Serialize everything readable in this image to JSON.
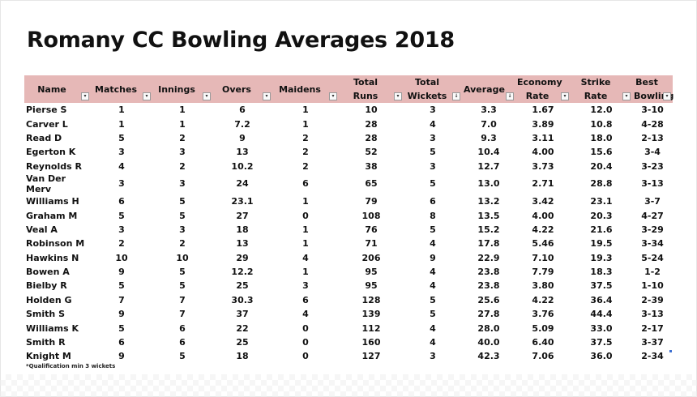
{
  "title": "Romany CC Bowling Averages 2018",
  "columns": [
    {
      "label": "Name",
      "filter": "▾"
    },
    {
      "label": "Matches",
      "filter": "▾"
    },
    {
      "label": "Innings",
      "filter": "▾"
    },
    {
      "label": "Overs",
      "filter": "▾"
    },
    {
      "label": "Maidens",
      "filter": "▾"
    },
    {
      "label": "Total Runs",
      "filter": "▾"
    },
    {
      "label": "Total Wickets",
      "filter": "↓"
    },
    {
      "label": "Average",
      "filter": "↓"
    },
    {
      "label": "Economy Rate",
      "filter": "▾"
    },
    {
      "label": "Strike Rate",
      "filter": "▾"
    },
    {
      "label": "Best Bowling",
      "filter": "▾"
    }
  ],
  "rows": [
    [
      "Pierse S",
      "1",
      "1",
      "6",
      "1",
      "10",
      "3",
      "3.3",
      "1.67",
      "12.0",
      "3-10"
    ],
    [
      "Carver L",
      "1",
      "1",
      "7.2",
      "1",
      "28",
      "4",
      "7.0",
      "3.89",
      "10.8",
      "4-28"
    ],
    [
      "Read D",
      "5",
      "2",
      "9",
      "2",
      "28",
      "3",
      "9.3",
      "3.11",
      "18.0",
      "2-13"
    ],
    [
      "Egerton K",
      "3",
      "3",
      "13",
      "2",
      "52",
      "5",
      "10.4",
      "4.00",
      "15.6",
      "3-4"
    ],
    [
      "Reynolds R",
      "4",
      "2",
      "10.2",
      "2",
      "38",
      "3",
      "12.7",
      "3.73",
      "20.4",
      "3-23"
    ],
    [
      "Van Der Merv",
      "3",
      "3",
      "24",
      "6",
      "65",
      "5",
      "13.0",
      "2.71",
      "28.8",
      "3-13"
    ],
    [
      "Williams H",
      "6",
      "5",
      "23.1",
      "1",
      "79",
      "6",
      "13.2",
      "3.42",
      "23.1",
      "3-7"
    ],
    [
      "Graham M",
      "5",
      "5",
      "27",
      "0",
      "108",
      "8",
      "13.5",
      "4.00",
      "20.3",
      "4-27"
    ],
    [
      "Veal A",
      "3",
      "3",
      "18",
      "1",
      "76",
      "5",
      "15.2",
      "4.22",
      "21.6",
      "3-29"
    ],
    [
      "Robinson M",
      "2",
      "2",
      "13",
      "1",
      "71",
      "4",
      "17.8",
      "5.46",
      "19.5",
      "3-34"
    ],
    [
      "Hawkins N",
      "10",
      "10",
      "29",
      "4",
      "206",
      "9",
      "22.9",
      "7.10",
      "19.3",
      "5-24"
    ],
    [
      "Bowen A",
      "9",
      "5",
      "12.2",
      "1",
      "95",
      "4",
      "23.8",
      "7.79",
      "18.3",
      "1-2"
    ],
    [
      "Bielby R",
      "5",
      "5",
      "25",
      "3",
      "95",
      "4",
      "23.8",
      "3.80",
      "37.5",
      "1-10"
    ],
    [
      "Holden G",
      "7",
      "7",
      "30.3",
      "6",
      "128",
      "5",
      "25.6",
      "4.22",
      "36.4",
      "2-39"
    ],
    [
      "Smith S",
      "9",
      "7",
      "37",
      "4",
      "139",
      "5",
      "27.8",
      "3.76",
      "44.4",
      "3-13"
    ],
    [
      "Williams K",
      "5",
      "6",
      "22",
      "0",
      "112",
      "4",
      "28.0",
      "5.09",
      "33.0",
      "2-17"
    ],
    [
      "Smith R",
      "6",
      "6",
      "25",
      "0",
      "160",
      "4",
      "40.0",
      "6.40",
      "37.5",
      "3-37"
    ],
    [
      "Knight M",
      "9",
      "5",
      "18",
      "0",
      "127",
      "3",
      "42.3",
      "7.06",
      "36.0",
      "2-34"
    ]
  ],
  "footnote": "*Qualification min 3 wickets",
  "colors": {
    "header_bg": "#e6b8b7",
    "text": "#111111"
  }
}
